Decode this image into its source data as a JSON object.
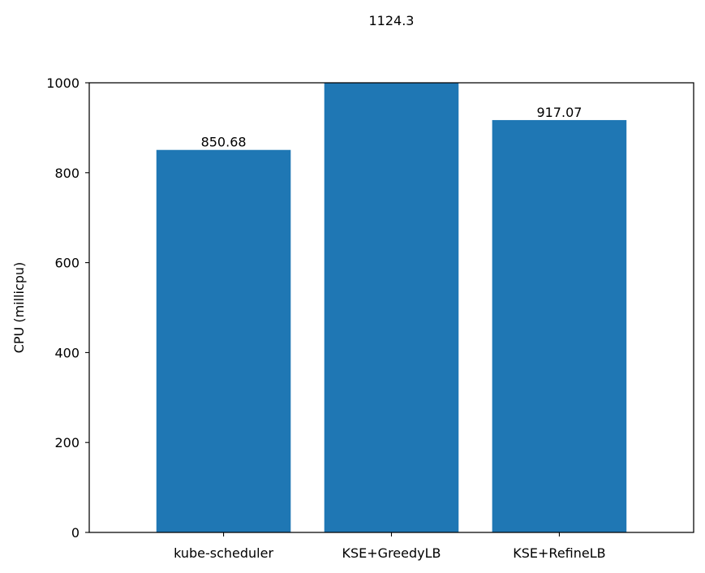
{
  "chart_data": {
    "type": "bar",
    "categories": [
      "kube-scheduler",
      "KSE+GreedyLB",
      "KSE+RefineLB"
    ],
    "values": [
      850.68,
      1124.3,
      917.07
    ],
    "data_labels": [
      "850.68",
      "1124.3",
      "917.07"
    ],
    "ylabel": "CPU (millicpu)",
    "ylim": [
      0,
      1000
    ],
    "yticks": [
      0,
      200,
      400,
      600,
      800,
      1000
    ],
    "grid": false,
    "bar_color": "#1f77b4"
  }
}
